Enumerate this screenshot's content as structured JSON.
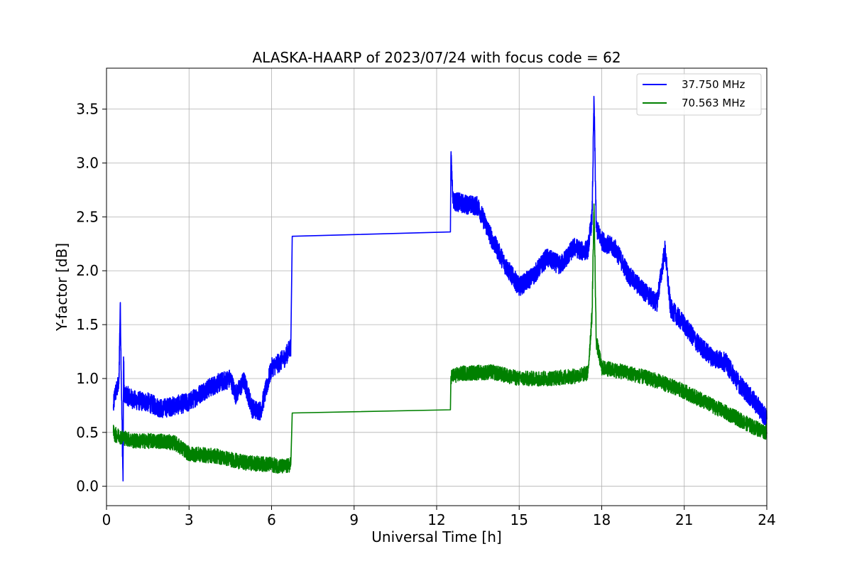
{
  "chart_data": {
    "type": "line",
    "title": "ALASKA-HAARP of 2023/07/24 with focus code = 62",
    "xlabel": "Universal Time [h]",
    "ylabel": "Y-factor [dB]",
    "xlim": [
      0,
      24
    ],
    "ylim": [
      -0.18,
      3.88
    ],
    "xticks": [
      0,
      3,
      6,
      9,
      12,
      15,
      18,
      21,
      24
    ],
    "xtick_labels": [
      "0",
      "3",
      "6",
      "9",
      "12",
      "15",
      "18",
      "21",
      "24"
    ],
    "yticks": [
      0.0,
      0.5,
      1.0,
      1.5,
      2.0,
      2.5,
      3.0,
      3.5
    ],
    "ytick_labels": [
      "0.0",
      "0.5",
      "1.0",
      "1.5",
      "2.0",
      "2.5",
      "3.0",
      "3.5"
    ],
    "grid": true,
    "legend_position": "top-right",
    "series": [
      {
        "name": "37.750 MHz",
        "color": "#0000ff",
        "noise": 0.09,
        "x": [
          0.25,
          0.3,
          0.45,
          0.5,
          0.55,
          0.6,
          0.62,
          0.65,
          0.7,
          1.0,
          1.5,
          2.0,
          2.5,
          3.0,
          3.5,
          4.0,
          4.5,
          4.7,
          5.0,
          5.3,
          5.6,
          6.0,
          6.3,
          6.5,
          6.7,
          6.75,
          12.5,
          12.52,
          12.6,
          13.0,
          13.5,
          14.0,
          14.5,
          15.0,
          15.5,
          16.0,
          16.5,
          17.0,
          17.3,
          17.5,
          17.65,
          17.72,
          17.8,
          18.0,
          18.5,
          19.0,
          19.5,
          20.0,
          20.3,
          20.5,
          21.0,
          21.5,
          22.0,
          22.5,
          23.0,
          23.5,
          23.8,
          24.0
        ],
        "y": [
          0.72,
          0.85,
          0.95,
          1.7,
          0.8,
          0.05,
          1.2,
          0.8,
          0.85,
          0.8,
          0.78,
          0.72,
          0.75,
          0.78,
          0.88,
          0.95,
          1.0,
          0.85,
          0.98,
          0.72,
          0.7,
          1.1,
          1.15,
          1.2,
          1.3,
          2.32,
          2.36,
          3.05,
          2.65,
          2.62,
          2.6,
          2.3,
          2.05,
          1.85,
          1.95,
          2.12,
          2.05,
          2.22,
          2.18,
          2.2,
          2.5,
          3.6,
          2.4,
          2.28,
          2.2,
          1.95,
          1.82,
          1.7,
          2.2,
          1.65,
          1.5,
          1.32,
          1.2,
          1.15,
          0.95,
          0.8,
          0.7,
          0.62
        ]
      },
      {
        "name": "70.563 MHz",
        "color": "#008000",
        "noise": 0.07,
        "x": [
          0.25,
          0.3,
          1.0,
          2.0,
          2.5,
          3.0,
          4.0,
          5.0,
          6.0,
          6.5,
          6.7,
          6.75,
          12.5,
          12.52,
          13.0,
          14.0,
          15.0,
          16.0,
          17.0,
          17.5,
          17.65,
          17.72,
          17.8,
          18.0,
          19.0,
          20.0,
          21.0,
          22.0,
          23.0,
          23.5,
          24.0
        ],
        "y": [
          0.5,
          0.48,
          0.42,
          0.42,
          0.4,
          0.3,
          0.28,
          0.22,
          0.2,
          0.18,
          0.2,
          0.68,
          0.71,
          1.02,
          1.05,
          1.06,
          1.0,
          1.0,
          1.02,
          1.05,
          1.6,
          2.62,
          1.35,
          1.1,
          1.05,
          0.98,
          0.88,
          0.75,
          0.62,
          0.55,
          0.5
        ]
      }
    ]
  }
}
